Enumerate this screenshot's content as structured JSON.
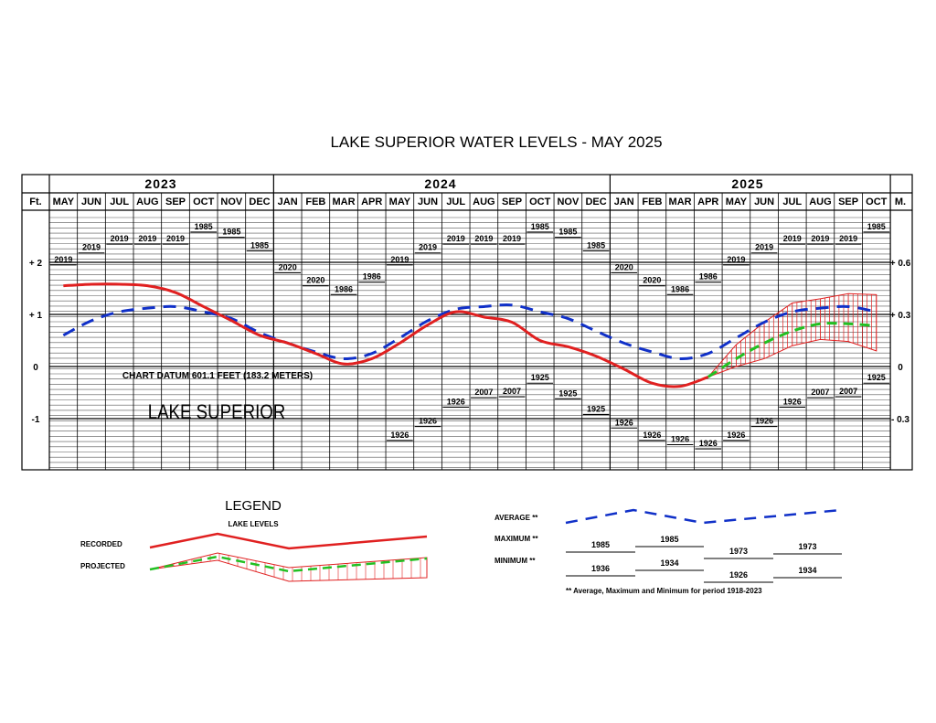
{
  "page": {
    "title": "LAKE SUPERIOR WATER LEVELS - MAY 2025",
    "years": [
      "2023",
      "2024",
      "2025"
    ],
    "left_unit": "Ft.",
    "right_unit": "M.",
    "datum_note": "CHART DATUM  601.1 FEET (183.2 METERS)",
    "lake_name": "LAKE SUPERIOR"
  },
  "legend": {
    "title": "LEGEND",
    "subtitle": "LAKE LEVELS",
    "recorded_label": "RECORDED",
    "projected_label": "PROJECTED",
    "average_label": "AVERAGE **",
    "maximum_label": "MAXIMUM **",
    "minimum_label": "MINIMUM **",
    "max_years": [
      "1985",
      "1985",
      "1973",
      "1973"
    ],
    "min_years": [
      "1936",
      "1934",
      "1926",
      "1934"
    ],
    "footnote": "** Average, Maximum and Minimum for period 1918-2023"
  },
  "chart_data": {
    "type": "line",
    "title": "LAKE SUPERIOR WATER LEVELS - MAY 2025",
    "months": [
      "MAY",
      "JUN",
      "JUL",
      "AUG",
      "SEP",
      "OCT",
      "NOV",
      "DEC",
      "JAN",
      "FEB",
      "MAR",
      "APR",
      "MAY",
      "JUN",
      "JUL",
      "AUG",
      "SEP",
      "OCT",
      "NOV",
      "DEC",
      "JAN",
      "FEB",
      "MAR",
      "APR",
      "MAY",
      "JUN",
      "JUL",
      "AUG",
      "SEP",
      "OCT"
    ],
    "y_unit_left": "Ft.",
    "y_unit_right": "M.",
    "y_ticks_left": [
      "+ 2",
      "+ 1",
      "0",
      "-1"
    ],
    "y_ticks_right": [
      "+ 0.6",
      "+ 0.3",
      "0",
      "- 0.3"
    ],
    "ylim_ft": [
      -1.0,
      2.0
    ],
    "series": [
      {
        "name": "RECORDED",
        "color": "#e02020",
        "values": [
          1.55,
          1.58,
          1.58,
          1.55,
          1.42,
          1.15,
          0.88,
          0.6,
          0.45,
          0.25,
          0.05,
          0.15,
          0.45,
          0.8,
          1.05,
          0.95,
          0.85,
          0.5,
          0.38,
          0.2,
          -0.05,
          -0.32,
          -0.38,
          -0.2
        ]
      },
      {
        "name": "AVERAGE **",
        "color": "#1030c8",
        "values": [
          0.6,
          0.88,
          1.05,
          1.12,
          1.15,
          1.05,
          0.92,
          0.65,
          0.45,
          0.28,
          0.15,
          0.25,
          0.55,
          0.88,
          1.1,
          1.15,
          1.18,
          1.05,
          0.92,
          0.68,
          0.45,
          0.28,
          0.15,
          0.25,
          0.55,
          0.85,
          1.05,
          1.12,
          1.15,
          1.05
        ]
      },
      {
        "name": "PROJECTED",
        "color": "#22c022",
        "values": [
          null,
          null,
          null,
          null,
          null,
          null,
          null,
          null,
          null,
          null,
          null,
          null,
          null,
          null,
          null,
          null,
          null,
          null,
          null,
          null,
          null,
          null,
          null,
          -0.2,
          0.15,
          0.45,
          0.68,
          0.82,
          0.82,
          0.78
        ]
      },
      {
        "name": "PROJECTED RANGE HIGH",
        "color": "#e02020",
        "values": [
          null,
          null,
          null,
          null,
          null,
          null,
          null,
          null,
          null,
          null,
          null,
          null,
          null,
          null,
          null,
          null,
          null,
          null,
          null,
          null,
          null,
          null,
          null,
          -0.2,
          0.42,
          0.85,
          1.22,
          1.3,
          1.4,
          1.38
        ]
      },
      {
        "name": "PROJECTED RANGE LOW",
        "color": "#e02020",
        "values": [
          null,
          null,
          null,
          null,
          null,
          null,
          null,
          null,
          null,
          null,
          null,
          null,
          null,
          null,
          null,
          null,
          null,
          null,
          null,
          null,
          null,
          null,
          null,
          -0.2,
          0.0,
          0.15,
          0.4,
          0.52,
          0.48,
          0.3
        ]
      }
    ],
    "max_records": [
      {
        "month_index": 0,
        "year": "2019",
        "ft": 1.95
      },
      {
        "month_index": 1,
        "year": "2019",
        "ft": 2.18
      },
      {
        "month_index": 2,
        "year": "2019",
        "ft": 2.35
      },
      {
        "month_index": 3,
        "year": "2019",
        "ft": 2.35
      },
      {
        "month_index": 4,
        "year": "2019",
        "ft": 2.35
      },
      {
        "month_index": 5,
        "year": "1985",
        "ft": 2.58
      },
      {
        "month_index": 6,
        "year": "1985",
        "ft": 2.48
      },
      {
        "month_index": 7,
        "year": "1985",
        "ft": 2.22
      },
      {
        "month_index": 8,
        "year": "2020",
        "ft": 1.8
      },
      {
        "month_index": 9,
        "year": "2020",
        "ft": 1.55
      },
      {
        "month_index": 10,
        "year": "1986",
        "ft": 1.38
      },
      {
        "month_index": 11,
        "year": "1986",
        "ft": 1.62
      },
      {
        "month_index": 12,
        "year": "2019",
        "ft": 1.95
      },
      {
        "month_index": 13,
        "year": "2019",
        "ft": 2.18
      },
      {
        "month_index": 14,
        "year": "2019",
        "ft": 2.35
      },
      {
        "month_index": 15,
        "year": "2019",
        "ft": 2.35
      },
      {
        "month_index": 16,
        "year": "2019",
        "ft": 2.35
      },
      {
        "month_index": 17,
        "year": "1985",
        "ft": 2.58
      },
      {
        "month_index": 18,
        "year": "1985",
        "ft": 2.48
      },
      {
        "month_index": 19,
        "year": "1985",
        "ft": 2.22
      },
      {
        "month_index": 20,
        "year": "2020",
        "ft": 1.8
      },
      {
        "month_index": 21,
        "year": "2020",
        "ft": 1.55
      },
      {
        "month_index": 22,
        "year": "1986",
        "ft": 1.38
      },
      {
        "month_index": 23,
        "year": "1986",
        "ft": 1.62
      },
      {
        "month_index": 24,
        "year": "2019",
        "ft": 1.95
      },
      {
        "month_index": 25,
        "year": "2019",
        "ft": 2.18
      },
      {
        "month_index": 26,
        "year": "2019",
        "ft": 2.35
      },
      {
        "month_index": 27,
        "year": "2019",
        "ft": 2.35
      },
      {
        "month_index": 28,
        "year": "2019",
        "ft": 2.35
      },
      {
        "month_index": 29,
        "year": "1985",
        "ft": 2.58
      }
    ],
    "min_records": [
      {
        "month_index": 12,
        "year": "1926",
        "ft": -1.42
      },
      {
        "month_index": 13,
        "year": "1926",
        "ft": -1.15
      },
      {
        "month_index": 14,
        "year": "1926",
        "ft": -0.78
      },
      {
        "month_index": 15,
        "year": "2007",
        "ft": -0.6
      },
      {
        "month_index": 16,
        "year": "2007",
        "ft": -0.58
      },
      {
        "month_index": 17,
        "year": "1925",
        "ft": -0.32
      },
      {
        "month_index": 18,
        "year": "1925",
        "ft": -0.62
      },
      {
        "month_index": 19,
        "year": "1925",
        "ft": -0.92
      },
      {
        "month_index": 20,
        "year": "1926",
        "ft": -1.18
      },
      {
        "month_index": 21,
        "year": "1926",
        "ft": -1.42
      },
      {
        "month_index": 22,
        "year": "1926",
        "ft": -1.5
      },
      {
        "month_index": 23,
        "year": "1926",
        "ft": -1.58
      },
      {
        "month_index": 24,
        "year": "1926",
        "ft": -1.42
      },
      {
        "month_index": 25,
        "year": "1926",
        "ft": -1.15
      },
      {
        "month_index": 26,
        "year": "1926",
        "ft": -0.78
      },
      {
        "month_index": 27,
        "year": "2007",
        "ft": -0.6
      },
      {
        "month_index": 28,
        "year": "2007",
        "ft": -0.58
      },
      {
        "month_index": 29,
        "year": "1925",
        "ft": -0.32
      }
    ]
  }
}
